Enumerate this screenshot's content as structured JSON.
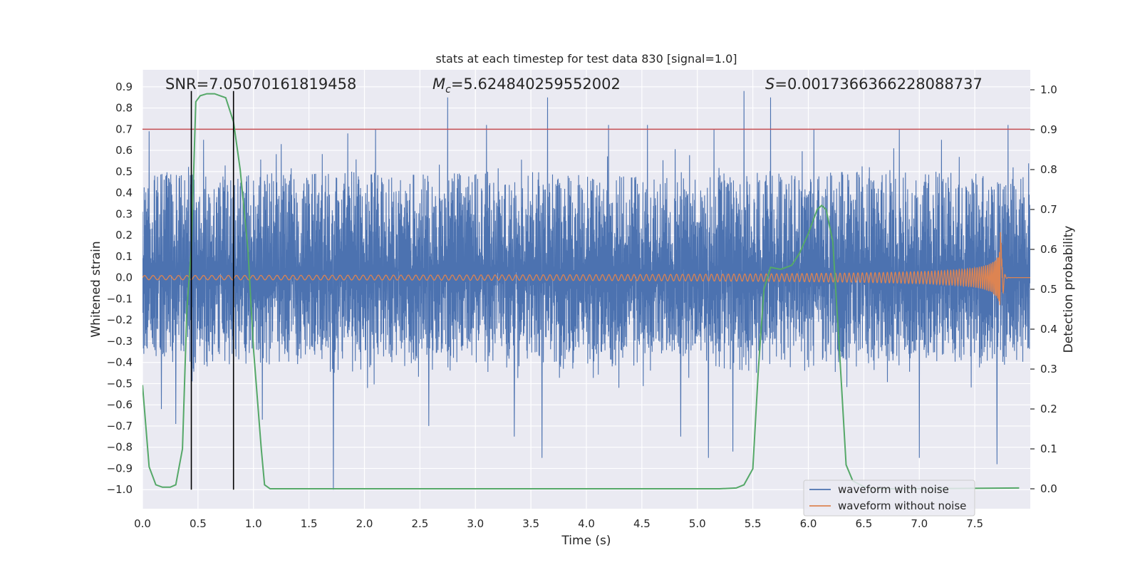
{
  "chart_data": {
    "type": "line",
    "title": "stats at each timestep for test data 830 [signal=1.0]",
    "xlabel": "Time (s)",
    "ylabel": "Whitened strain",
    "ylabel_right": "Detection probability",
    "xlim": [
      0.0,
      8.0
    ],
    "ylim": [
      -1.09,
      0.98
    ],
    "ylim_right": [
      -0.05,
      1.05
    ],
    "x_ticks": [
      "0.0",
      "0.5",
      "1.0",
      "1.5",
      "2.0",
      "2.5",
      "3.0",
      "3.5",
      "4.0",
      "4.5",
      "5.0",
      "5.5",
      "6.0",
      "6.5",
      "7.0",
      "7.5"
    ],
    "y_ticks": [
      "0.9",
      "0.8",
      "0.7",
      "0.6",
      "0.5",
      "0.4",
      "0.3",
      "0.2",
      "0.1",
      "0.0",
      "-0.1",
      "-0.2",
      "-0.3",
      "-0.4",
      "-0.5",
      "-0.6",
      "-0.7",
      "-0.8",
      "-0.9",
      "-1.0"
    ],
    "y_ticks_right": [
      "1.0",
      "0.9",
      "0.8",
      "0.7",
      "0.6",
      "0.5",
      "0.4",
      "0.3",
      "0.2",
      "0.1",
      "0.0"
    ],
    "annotations": {
      "snr": "SNR=7.05070161819458",
      "mc_symbol": "M",
      "mc_sub": "c",
      "mc_value": "=5.624840259552002",
      "s_symbol": "S",
      "s_value": "=0.0017366366228088737"
    },
    "threshold": 0.7,
    "vertical_lines": [
      0.44,
      0.82
    ],
    "legend": [
      "waveform with noise",
      "waveform without noise"
    ],
    "colors": {
      "noise": "#4c72b0",
      "clean": "#dd8452",
      "probability": "#55a868",
      "threshold": "#c44e52",
      "marker": "#000000",
      "background": "#eaeaf2"
    },
    "series": [
      {
        "name": "waveform with noise",
        "description": "whitened strain noise, roughly spanning -0.4 to 0.5 with spikes up to 0.88 and down to -1.0",
        "noise_band": [
          -0.4,
          0.5
        ],
        "spikes_up": [
          [
            0.06,
            0.69
          ],
          [
            0.3,
            0.8
          ],
          [
            0.55,
            0.65
          ],
          [
            1.25,
            0.63
          ],
          [
            1.85,
            0.68
          ],
          [
            2.1,
            0.7
          ],
          [
            2.75,
            0.85
          ],
          [
            3.1,
            0.72
          ],
          [
            3.65,
            0.85
          ],
          [
            4.2,
            0.72
          ],
          [
            4.55,
            0.72
          ],
          [
            5.15,
            0.7
          ],
          [
            5.42,
            0.88
          ],
          [
            5.66,
            0.85
          ],
          [
            6.05,
            0.7
          ],
          [
            6.82,
            0.7
          ],
          [
            7.2,
            0.65
          ],
          [
            7.8,
            0.72
          ]
        ],
        "spikes_down": [
          [
            0.17,
            -0.62
          ],
          [
            0.3,
            -0.69
          ],
          [
            1.08,
            -0.67
          ],
          [
            1.72,
            -1.0
          ],
          [
            2.58,
            -0.7
          ],
          [
            3.35,
            -0.75
          ],
          [
            3.6,
            -0.85
          ],
          [
            4.85,
            -0.75
          ],
          [
            5.1,
            -0.85
          ],
          [
            5.32,
            -0.82
          ],
          [
            7.0,
            -0.85
          ],
          [
            7.7,
            -0.88
          ]
        ]
      },
      {
        "name": "waveform without noise",
        "description": "chirp signal growing in amplitude until merger near 7.75 s",
        "start_amplitude": 0.01,
        "peak_time": 7.75,
        "peak_value": 0.21,
        "min_value": -0.14
      },
      {
        "name": "detection probability",
        "axis": "right",
        "x": [
          0.0,
          0.06,
          0.12,
          0.18,
          0.25,
          0.3,
          0.36,
          0.4,
          0.44,
          0.48,
          0.52,
          0.58,
          0.65,
          0.7,
          0.75,
          0.82,
          0.88,
          0.95,
          1.0,
          1.07,
          1.1,
          1.15,
          5.2,
          5.35,
          5.42,
          5.5,
          5.55,
          5.6,
          5.66,
          5.75,
          5.85,
          5.92,
          6.0,
          6.08,
          6.12,
          6.16,
          6.22,
          6.28,
          6.34,
          6.4,
          6.5,
          6.6,
          7.0,
          7.9
        ],
        "y": [
          0.26,
          0.055,
          0.01,
          0.004,
          0.004,
          0.01,
          0.1,
          0.45,
          0.6,
          0.97,
          0.985,
          0.99,
          0.99,
          0.985,
          0.98,
          0.92,
          0.8,
          0.6,
          0.35,
          0.1,
          0.01,
          0.0,
          0.0,
          0.002,
          0.01,
          0.05,
          0.3,
          0.5,
          0.555,
          0.55,
          0.56,
          0.59,
          0.64,
          0.7,
          0.71,
          0.7,
          0.62,
          0.35,
          0.06,
          0.02,
          0.005,
          0.0,
          0.0,
          0.002
        ]
      }
    ]
  }
}
